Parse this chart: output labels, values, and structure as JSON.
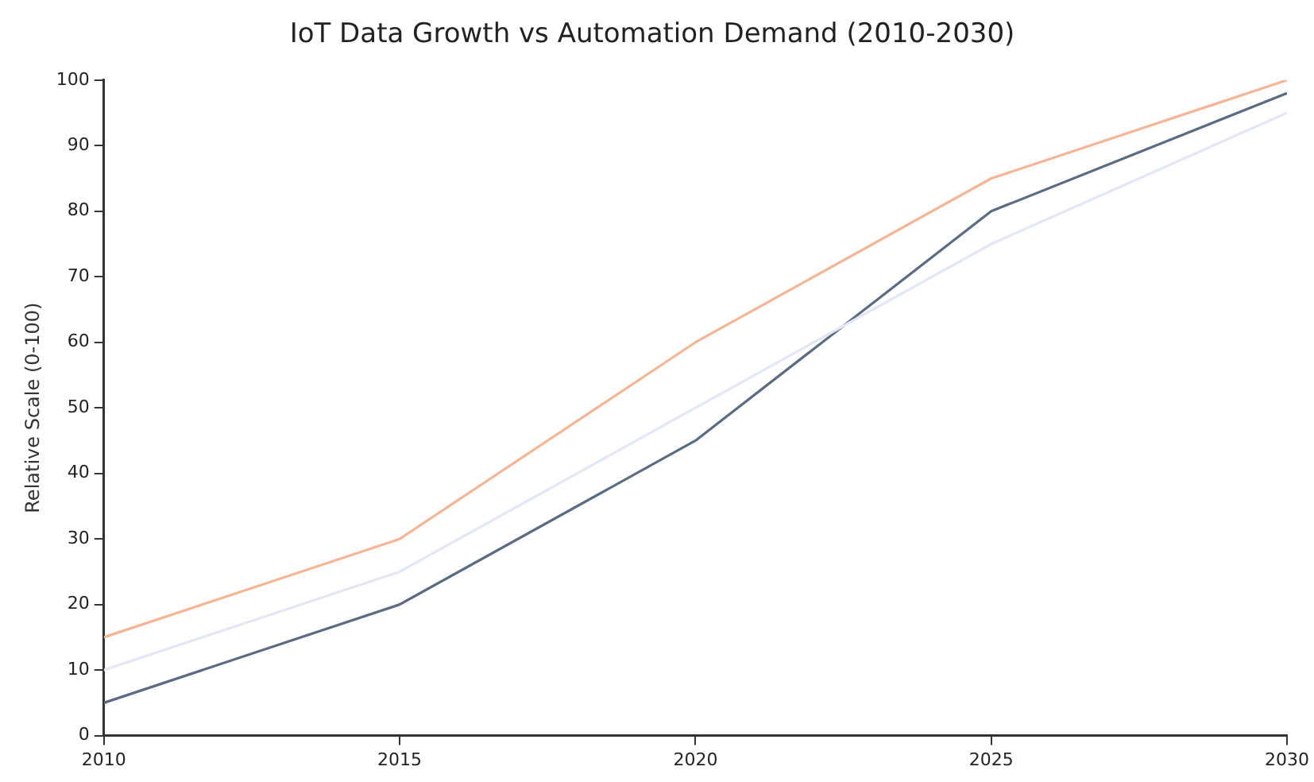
{
  "chart_data": {
    "type": "line",
    "title": "IoT Data Growth vs Automation Demand (2010-2030)",
    "ylabel": "Relative Scale (0-100)",
    "x": [
      2010,
      2015,
      2020,
      2025,
      2030
    ],
    "series": [
      {
        "color": "#f4b595",
        "values": [
          15,
          30,
          60,
          85,
          100
        ]
      },
      {
        "color": "#e4e6f6",
        "values": [
          10,
          25,
          50,
          75,
          95
        ]
      },
      {
        "color": "#5b6b82",
        "values": [
          5,
          20,
          45,
          80,
          98
        ]
      }
    ],
    "xlim": [
      2010,
      2030
    ],
    "xticks": [
      2010,
      2015,
      2020,
      2025,
      2030
    ],
    "ylim": [
      0,
      100
    ],
    "yticks": [
      0,
      10,
      20,
      30,
      40,
      50,
      60,
      70,
      80,
      90,
      100
    ],
    "grid": false,
    "legend": false
  }
}
